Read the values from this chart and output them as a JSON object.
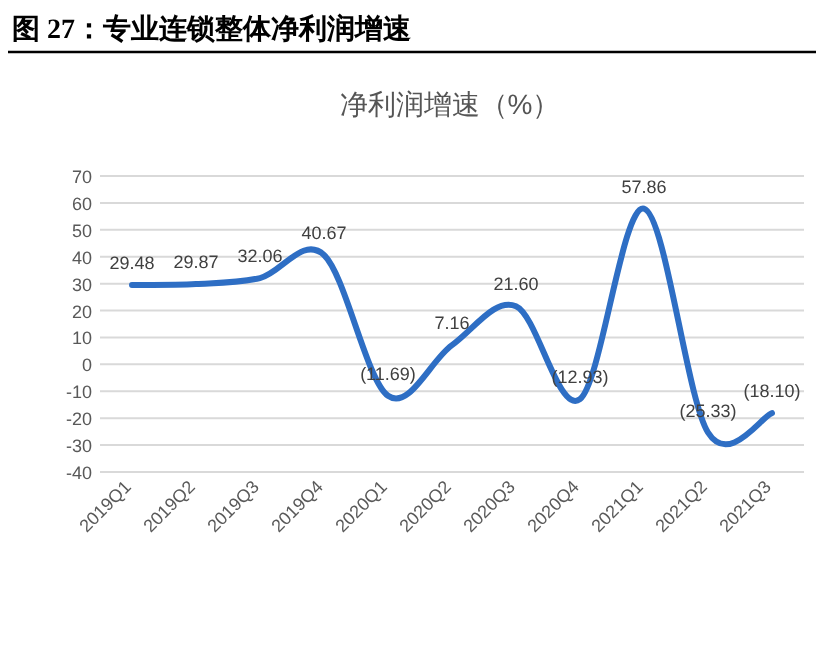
{
  "chart_data": {
    "type": "line",
    "title": "图 27：专业连锁整体净利润增速",
    "subtitle": "净利润增速（%）",
    "categories": [
      "2019Q1",
      "2019Q2",
      "2019Q3",
      "2019Q4",
      "2020Q1",
      "2020Q2",
      "2020Q3",
      "2020Q4",
      "2021Q1",
      "2021Q2",
      "2021Q3"
    ],
    "series": [
      {
        "color": "#2e6ec4",
        "values": [
          29.48,
          29.87,
          32.06,
          40.67,
          -11.69,
          7.16,
          21.6,
          -12.93,
          57.86,
          -25.33,
          -18.1
        ],
        "value_labels": [
          "29.48",
          "29.87",
          "32.06",
          "40.67",
          "(11.69)",
          "7.16",
          "21.60",
          "(12.93)",
          "57.86",
          "(25.33)",
          "(18.10)"
        ]
      }
    ],
    "ylim": [
      -40,
      70
    ],
    "yticks": [
      -40,
      -30,
      -20,
      -10,
      0,
      10,
      20,
      30,
      40,
      50,
      60,
      70
    ],
    "grid": "y",
    "marker": "none",
    "line_style": "solid"
  }
}
